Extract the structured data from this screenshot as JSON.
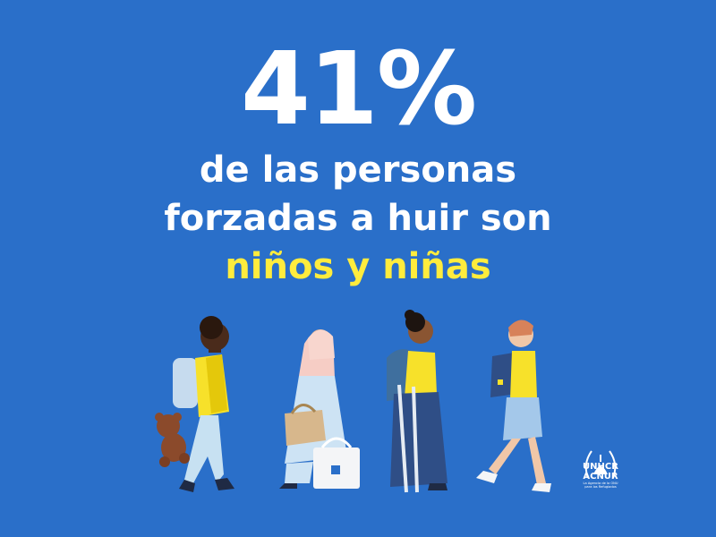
{
  "headline": {
    "percent": "41%"
  },
  "statement": {
    "line1": "de las personas",
    "line2": "forzadas a huir son",
    "highlight": "niños y niñas"
  },
  "logo": {
    "name1": "UNHCR",
    "name2": "ACNUR",
    "tagline1": "La Agencia de la ONU",
    "tagline2": "para los Refugiados"
  },
  "colors": {
    "background": "#2a6fc9",
    "highlight": "#ffec3d",
    "text": "#ffffff"
  }
}
